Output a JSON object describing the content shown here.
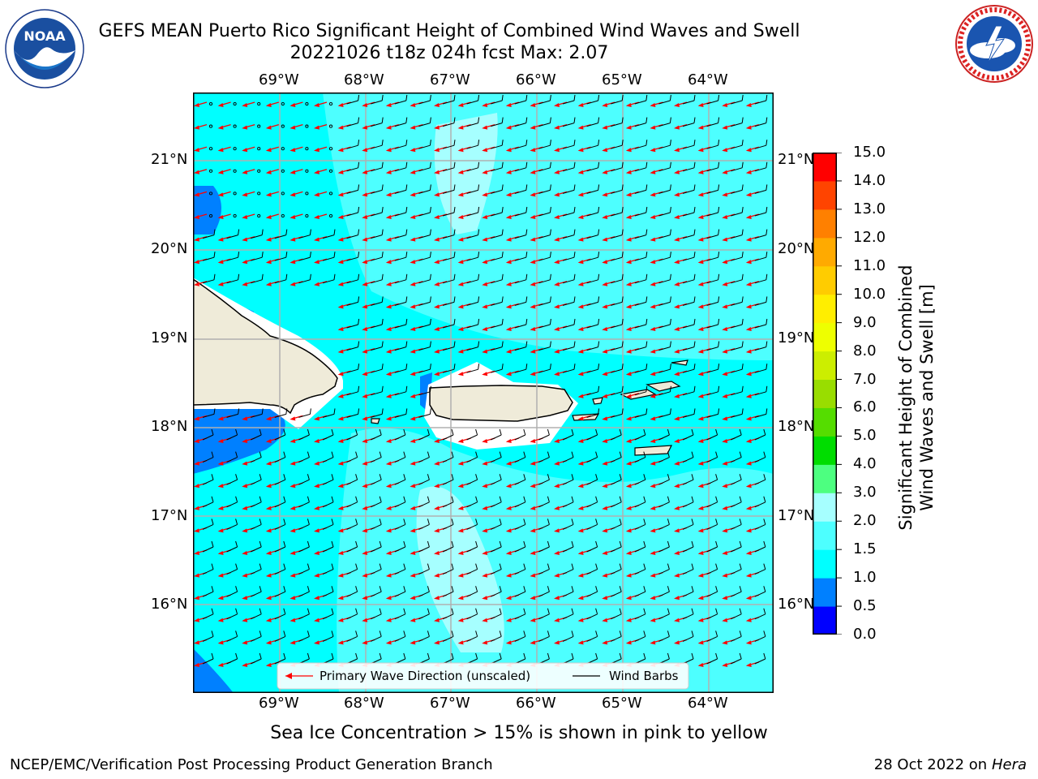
{
  "title": {
    "line1": "GEFS MEAN Puerto Rico Significant Height of Combined Wind Waves and Swell",
    "line2": "20221026 t18z 024h fcst   Max: 2.07"
  },
  "logos": {
    "left": {
      "name": "NOAA",
      "text": "NOAA",
      "ring_text": "NATIONAL OCEANIC AND ATMOSPHERIC ADMINISTRATION · U.S. DEPARTMENT OF COMMERCE"
    },
    "right": {
      "name": "National Weather Service",
      "ring_text": "NATIONAL WEATHER SERVICE"
    }
  },
  "map": {
    "lon_labels": [
      "69°W",
      "68°W",
      "67°W",
      "66°W",
      "65°W",
      "64°W"
    ],
    "lat_labels": [
      "21°N",
      "20°N",
      "19°N",
      "18°N",
      "17°N",
      "16°N"
    ],
    "legend": {
      "wave_direction": "Primary Wave Direction (unscaled)",
      "wind_barbs": "Wind Barbs"
    },
    "colors": {
      "ocean_main": "#00ffff",
      "ocean_higher": "#4dffff",
      "ocean_highest": "#a6ffff",
      "ocean_low": "#0080ff",
      "land": "#efebd9",
      "arrow": "#ff0000",
      "grid": "#b0b0b0"
    }
  },
  "colorbar": {
    "label_line1": "Significant Height of Combined",
    "label_line2": "Wind Waves and Swell [m]",
    "ticks": [
      "0.0",
      "0.5",
      "1.0",
      "1.5",
      "2.0",
      "3.0",
      "4.0",
      "5.0",
      "6.0",
      "7.0",
      "8.0",
      "9.0",
      "10.0",
      "11.0",
      "12.0",
      "13.0",
      "14.0",
      "15.0"
    ],
    "colors": [
      "#0000ff",
      "#0080ff",
      "#00ffff",
      "#4dffff",
      "#a6ffff",
      "#4dff80",
      "#00dd00",
      "#55dd00",
      "#99dd00",
      "#ccee00",
      "#eeff00",
      "#ffee00",
      "#ffcc00",
      "#ffaa00",
      "#ff8000",
      "#ff4400",
      "#ff0000"
    ]
  },
  "subtitle": "Sea Ice Concentration > 15% is shown in pink to yellow",
  "footer": {
    "left": "NCEP/EMC/Verification Post Processing Product Generation Branch",
    "right_prefix": "28 Oct 2022 on ",
    "right_host": "Hera"
  }
}
